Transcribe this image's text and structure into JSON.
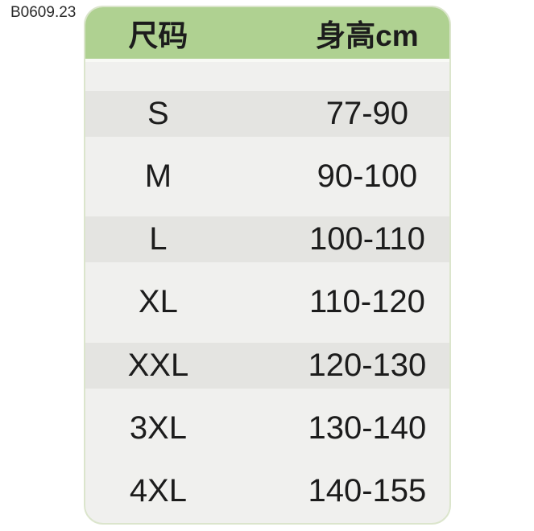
{
  "page": {
    "label": "B0609.23"
  },
  "chart_data": {
    "type": "table",
    "columns": [
      "尺码",
      "身高cm"
    ],
    "rows": [
      [
        "S",
        "77-90"
      ],
      [
        "M",
        "90-100"
      ],
      [
        "L",
        "100-110"
      ],
      [
        "XL",
        "110-120"
      ],
      [
        "XXL",
        "120-130"
      ],
      [
        "3XL",
        "130-140"
      ],
      [
        "4XL",
        "140-155"
      ]
    ],
    "layout": {
      "striped_rows": [
        "S",
        "L",
        "XXL"
      ],
      "header_position": "top",
      "corner_style": "rounded"
    }
  },
  "colors": {
    "header_green": "#afd191",
    "row_band_gray": "#e4e4e1",
    "body_gray": "#f0f0ee",
    "border_pale_green": "#dbe5cc",
    "text": "#1c1c1c",
    "background": "#ffffff"
  }
}
